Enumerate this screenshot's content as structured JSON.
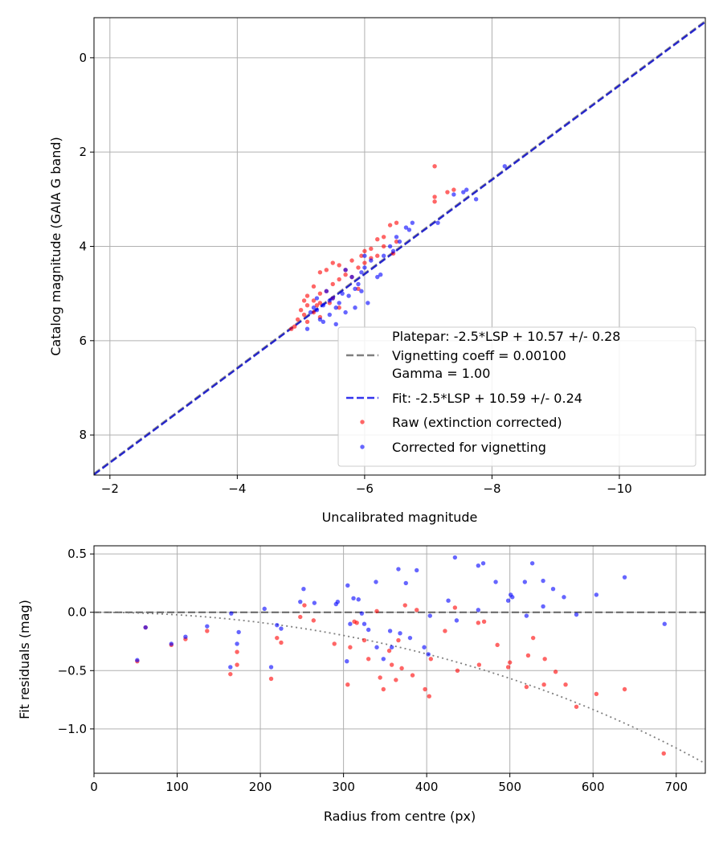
{
  "chart_data": [
    {
      "type": "scatter",
      "xlabel": "Uncalibrated magnitude",
      "ylabel": "Catalog magnitude (GAIA G band)",
      "xlim": [
        -1.75,
        -11.35
      ],
      "ylim": [
        8.85,
        -0.85
      ],
      "xticks": [
        -2,
        -4,
        -6,
        -8,
        -10
      ],
      "xtick_labels": [
        "−2",
        "−4",
        "−6",
        "−8",
        "−10"
      ],
      "yticks": [
        0,
        2,
        4,
        6,
        8
      ],
      "ytick_labels": [
        "0",
        "2",
        "4",
        "6",
        "8"
      ],
      "grid": true,
      "legend_position": "lower right",
      "lines": [
        {
          "name": "Platepar: -2.5*LSP + 10.57 +/- 0.28",
          "intercept": 10.57,
          "color": "#7f7f7f",
          "style": "dashed"
        },
        {
          "name": "Fit: -2.5*LSP + 10.59 +/- 0.24",
          "intercept": 10.59,
          "color": "#0000cc",
          "style": "dashed"
        }
      ],
      "legend": [
        {
          "text": "Platepar: -2.5*LSP + 10.57 +/- 0.28",
          "kind": "none"
        },
        {
          "text": "Vignetting coeff = 0.00100",
          "kind": "line",
          "color": "#7f7f7f"
        },
        {
          "text": "Gamma = 1.00",
          "kind": "none"
        },
        {
          "text": "Fit: -2.5*LSP + 10.59 +/- 0.24",
          "kind": "line",
          "color": "#3333ee"
        },
        {
          "text": "Raw (extinction corrected)",
          "kind": "dot",
          "color": "#ff0000"
        },
        {
          "text": "Corrected for vignetting",
          "kind": "dot",
          "color": "#0000ff"
        }
      ],
      "series": [
        {
          "name": "Raw (extinction corrected)",
          "color": "#ff0000",
          "points": [
            [
              -7.1,
              2.3
            ],
            [
              -7.1,
              2.95
            ],
            [
              -7.1,
              3.05
            ],
            [
              -7.3,
              2.85
            ],
            [
              -7.4,
              2.8
            ],
            [
              -6.5,
              3.5
            ],
            [
              -6.4,
              3.55
            ],
            [
              -6.3,
              3.8
            ],
            [
              -6.2,
              3.85
            ],
            [
              -6.5,
              3.9
            ],
            [
              -6.3,
              4.0
            ],
            [
              -6.1,
              4.05
            ],
            [
              -6.0,
              4.1
            ],
            [
              -5.95,
              4.2
            ],
            [
              -6.1,
              4.25
            ],
            [
              -5.8,
              4.3
            ],
            [
              -5.5,
              4.35
            ],
            [
              -5.6,
              4.4
            ],
            [
              -5.9,
              4.45
            ],
            [
              -5.4,
              4.5
            ],
            [
              -5.3,
              4.55
            ],
            [
              -5.7,
              4.6
            ],
            [
              -5.8,
              4.65
            ],
            [
              -5.6,
              4.7
            ],
            [
              -5.5,
              4.8
            ],
            [
              -5.2,
              4.85
            ],
            [
              -5.4,
              4.95
            ],
            [
              -5.3,
              5.0
            ],
            [
              -5.1,
              5.05
            ],
            [
              -5.5,
              5.1
            ],
            [
              -5.2,
              5.15
            ],
            [
              -5.05,
              5.15
            ],
            [
              -5.3,
              5.2
            ],
            [
              -5.1,
              5.25
            ],
            [
              -5.6,
              5.3
            ],
            [
              -5.0,
              5.35
            ],
            [
              -5.2,
              5.4
            ],
            [
              -5.05,
              5.45
            ],
            [
              -5.3,
              5.5
            ],
            [
              -4.95,
              5.55
            ],
            [
              -5.1,
              5.6
            ],
            [
              -4.9,
              5.7
            ],
            [
              -4.85,
              5.75
            ],
            [
              -5.25,
              5.25
            ],
            [
              -5.45,
              5.2
            ],
            [
              -5.7,
              4.5
            ],
            [
              -6.2,
              4.2
            ],
            [
              -6.45,
              4.15
            ],
            [
              -5.9,
              4.9
            ],
            [
              -6.0,
              4.35
            ]
          ]
        },
        {
          "name": "Corrected for vignetting",
          "color": "#0000ff",
          "points": [
            [
              -8.2,
              2.3
            ],
            [
              -7.6,
              2.8
            ],
            [
              -7.55,
              2.85
            ],
            [
              -7.4,
              2.9
            ],
            [
              -7.75,
              3.0
            ],
            [
              -7.15,
              3.5
            ],
            [
              -6.75,
              3.5
            ],
            [
              -6.65,
              3.6
            ],
            [
              -6.7,
              3.65
            ],
            [
              -6.5,
              3.8
            ],
            [
              -6.55,
              3.9
            ],
            [
              -6.4,
              4.0
            ],
            [
              -6.45,
              4.1
            ],
            [
              -6.3,
              4.2
            ],
            [
              -6.0,
              4.2
            ],
            [
              -6.1,
              4.3
            ],
            [
              -6.0,
              4.45
            ],
            [
              -5.7,
              4.5
            ],
            [
              -5.95,
              4.55
            ],
            [
              -6.25,
              4.6
            ],
            [
              -5.8,
              4.65
            ],
            [
              -6.2,
              4.65
            ],
            [
              -5.9,
              4.8
            ],
            [
              -5.85,
              4.9
            ],
            [
              -5.95,
              4.95
            ],
            [
              -5.65,
              5.0
            ],
            [
              -5.75,
              5.05
            ],
            [
              -5.5,
              5.1
            ],
            [
              -5.45,
              5.15
            ],
            [
              -5.6,
              5.2
            ],
            [
              -5.35,
              5.25
            ],
            [
              -5.55,
              5.3
            ],
            [
              -5.2,
              5.3
            ],
            [
              -5.25,
              5.35
            ],
            [
              -5.15,
              5.4
            ],
            [
              -5.45,
              5.45
            ],
            [
              -5.3,
              5.55
            ],
            [
              -5.7,
              5.4
            ],
            [
              -5.35,
              5.6
            ],
            [
              -5.1,
              5.75
            ],
            [
              -5.55,
              5.65
            ],
            [
              -5.85,
              5.3
            ],
            [
              -6.05,
              5.2
            ],
            [
              -5.25,
              5.1
            ],
            [
              -5.4,
              4.95
            ]
          ]
        }
      ]
    },
    {
      "type": "scatter",
      "xlabel": "Radius from centre (px)",
      "ylabel": "Fit residuals (mag)",
      "xlim": [
        0,
        735
      ],
      "ylim": [
        -1.38,
        0.57
      ],
      "xticks": [
        0,
        100,
        200,
        300,
        400,
        500,
        600,
        700
      ],
      "xtick_labels": [
        "0",
        "100",
        "200",
        "300",
        "400",
        "500",
        "600",
        "700"
      ],
      "yticks": [
        0.5,
        0.0,
        -0.5,
        -1.0
      ],
      "ytick_labels": [
        "0.5",
        "0.0",
        "−0.5",
        "−1.0"
      ],
      "grid": true,
      "lines": [
        {
          "name": "zero",
          "value": 0,
          "color": "#555555",
          "style": "dashed"
        },
        {
          "name": "vignetting",
          "coeff": 0.001,
          "color": "#808080",
          "style": "dotted"
        }
      ],
      "series": [
        {
          "name": "Raw",
          "color": "#ff0000",
          "points": [
            [
              52,
              -0.42
            ],
            [
              62,
              -0.13
            ],
            [
              93,
              -0.28
            ],
            [
              110,
              -0.23
            ],
            [
              136,
              -0.16
            ],
            [
              164,
              -0.53
            ],
            [
              172,
              -0.34
            ],
            [
              172,
              -0.45
            ],
            [
              213,
              -0.57
            ],
            [
              220,
              -0.22
            ],
            [
              225,
              -0.26
            ],
            [
              248,
              -0.04
            ],
            [
              253,
              0.06
            ],
            [
              264,
              -0.07
            ],
            [
              289,
              -0.27
            ],
            [
              305,
              -0.62
            ],
            [
              308,
              -0.3
            ],
            [
              313,
              -0.08
            ],
            [
              316,
              -0.09
            ],
            [
              325,
              -0.24
            ],
            [
              330,
              -0.4
            ],
            [
              340,
              0.01
            ],
            [
              344,
              -0.56
            ],
            [
              348,
              -0.66
            ],
            [
              355,
              -0.33
            ],
            [
              358,
              -0.45
            ],
            [
              363,
              -0.58
            ],
            [
              366,
              -0.24
            ],
            [
              370,
              -0.48
            ],
            [
              374,
              0.06
            ],
            [
              383,
              -0.54
            ],
            [
              388,
              0.02
            ],
            [
              398,
              -0.66
            ],
            [
              403,
              -0.72
            ],
            [
              405,
              -0.4
            ],
            [
              422,
              -0.16
            ],
            [
              434,
              0.04
            ],
            [
              437,
              -0.5
            ],
            [
              462,
              -0.09
            ],
            [
              463,
              -0.45
            ],
            [
              469,
              -0.08
            ],
            [
              485,
              -0.28
            ],
            [
              498,
              -0.47
            ],
            [
              500,
              -0.43
            ],
            [
              520,
              -0.64
            ],
            [
              522,
              -0.37
            ],
            [
              528,
              -0.22
            ],
            [
              541,
              -0.62
            ],
            [
              542,
              -0.4
            ],
            [
              555,
              -0.51
            ],
            [
              567,
              -0.62
            ],
            [
              580,
              -0.81
            ],
            [
              604,
              -0.7
            ],
            [
              638,
              -0.66
            ],
            [
              685,
              -1.21
            ]
          ]
        },
        {
          "name": "Corrected",
          "color": "#0000ff",
          "points": [
            [
              52,
              -0.41
            ],
            [
              62,
              -0.13
            ],
            [
              93,
              -0.27
            ],
            [
              110,
              -0.21
            ],
            [
              136,
              -0.12
            ],
            [
              164,
              -0.47
            ],
            [
              165,
              -0.01
            ],
            [
              172,
              -0.27
            ],
            [
              174,
              -0.17
            ],
            [
              205,
              0.03
            ],
            [
              213,
              -0.47
            ],
            [
              220,
              -0.11
            ],
            [
              225,
              -0.14
            ],
            [
              248,
              0.09
            ],
            [
              252,
              0.2
            ],
            [
              265,
              0.08
            ],
            [
              291,
              0.07
            ],
            [
              293,
              0.09
            ],
            [
              304,
              -0.42
            ],
            [
              305,
              0.23
            ],
            [
              308,
              -0.1
            ],
            [
              312,
              0.12
            ],
            [
              318,
              0.11
            ],
            [
              322,
              -0.01
            ],
            [
              325,
              -0.1
            ],
            [
              330,
              -0.15
            ],
            [
              339,
              0.26
            ],
            [
              340,
              -0.3
            ],
            [
              348,
              -0.4
            ],
            [
              356,
              -0.16
            ],
            [
              358,
              -0.3
            ],
            [
              366,
              0.37
            ],
            [
              368,
              -0.18
            ],
            [
              375,
              0.25
            ],
            [
              380,
              -0.22
            ],
            [
              388,
              0.36
            ],
            [
              397,
              -0.3
            ],
            [
              402,
              -0.36
            ],
            [
              404,
              -0.03
            ],
            [
              426,
              0.1
            ],
            [
              434,
              0.47
            ],
            [
              436,
              -0.07
            ],
            [
              462,
              0.02
            ],
            [
              462,
              0.4
            ],
            [
              468,
              0.42
            ],
            [
              483,
              0.26
            ],
            [
              498,
              0.1
            ],
            [
              501,
              0.15
            ],
            [
              503,
              0.13
            ],
            [
              518,
              0.26
            ],
            [
              520,
              -0.03
            ],
            [
              527,
              0.42
            ],
            [
              540,
              0.27
            ],
            [
              540,
              0.05
            ],
            [
              552,
              0.2
            ],
            [
              565,
              0.13
            ],
            [
              580,
              -0.02
            ],
            [
              604,
              0.15
            ],
            [
              638,
              0.3
            ],
            [
              686,
              -0.1
            ]
          ]
        }
      ]
    }
  ]
}
